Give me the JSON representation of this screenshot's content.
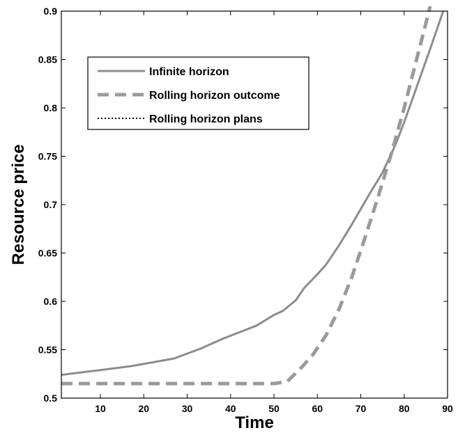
{
  "chart_data": {
    "type": "line",
    "xlabel": "Time",
    "ylabel": "Resource price",
    "xlim": [
      1,
      90
    ],
    "ylim": [
      0.5,
      0.9
    ],
    "xticks": [
      10,
      20,
      30,
      40,
      50,
      60,
      70,
      80,
      90
    ],
    "xtick_labels": [
      "10",
      "20",
      "30",
      "40",
      "50",
      "60",
      "70",
      "80",
      "90"
    ],
    "yticks": [
      0.5,
      0.55,
      0.6,
      0.65,
      0.7,
      0.75,
      0.8,
      0.85,
      0.9
    ],
    "ytick_labels": [
      "0.5",
      "0.55",
      "0.6",
      "0.65",
      "0.7",
      "0.75",
      "0.8",
      "0.85",
      "0.9"
    ],
    "grid": false,
    "legend_position": "top-left",
    "series": [
      {
        "name": "Infinite horizon",
        "style": "solid",
        "color": "#8c8c8c",
        "x": [
          1,
          10,
          17,
          22,
          27,
          33,
          38,
          42,
          46,
          50,
          52,
          55,
          57,
          60,
          62,
          65,
          68,
          72,
          75,
          78,
          80,
          83,
          86,
          89
        ],
        "y": [
          0.524,
          0.529,
          0.533,
          0.537,
          0.541,
          0.551,
          0.561,
          0.568,
          0.575,
          0.586,
          0.59,
          0.601,
          0.614,
          0.628,
          0.638,
          0.658,
          0.68,
          0.711,
          0.733,
          0.762,
          0.785,
          0.823,
          0.861,
          0.9
        ]
      },
      {
        "name": "Rolling horizon outcome",
        "style": "dashed",
        "color": "#9a9a9a",
        "x": [
          1,
          10,
          20,
          30,
          40,
          50,
          53,
          56,
          59,
          62,
          65,
          68,
          71,
          74,
          77,
          80,
          82,
          84,
          86
        ],
        "y": [
          0.515,
          0.515,
          0.515,
          0.515,
          0.515,
          0.515,
          0.517,
          0.53,
          0.545,
          0.565,
          0.592,
          0.626,
          0.666,
          0.708,
          0.752,
          0.8,
          0.835,
          0.87,
          0.905
        ]
      },
      {
        "name": "Rolling horizon plans",
        "style": "dotted",
        "color": "#000000",
        "x": [],
        "y": []
      }
    ]
  }
}
